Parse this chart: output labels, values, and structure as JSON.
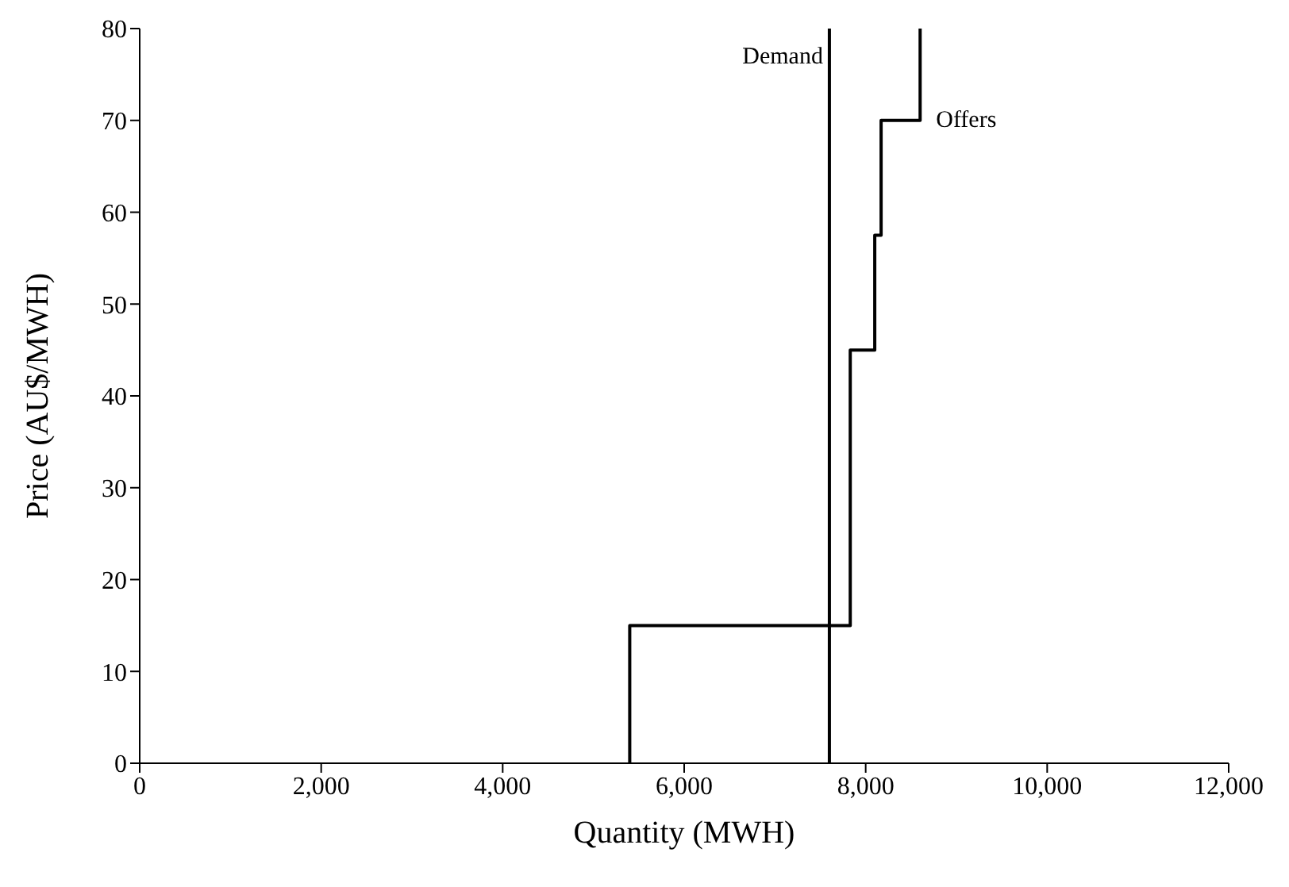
{
  "chart_data": {
    "type": "line",
    "xlabel": "Quantity (MWH)",
    "ylabel": "Price (AU$/MWH)",
    "xlim": [
      0,
      12000
    ],
    "xticks": [
      0,
      {
        "value": 2000,
        "label": "2,000"
      },
      {
        "value": 4000,
        "label": "4,000"
      },
      {
        "value": 6000,
        "label": "6,000"
      },
      {
        "value": 8000,
        "label": "8,000"
      },
      {
        "value": 10000,
        "label": "10,000"
      },
      {
        "value": 12000,
        "label": "12,000"
      }
    ],
    "ylim": [
      0,
      80
    ],
    "yticks": [
      0,
      10,
      20,
      30,
      40,
      50,
      60,
      70,
      80
    ],
    "grid": false,
    "legend": false,
    "marker": "none",
    "series": [
      {
        "name": "Demand",
        "type": "line",
        "color": "#000000",
        "x": [
          7600,
          7600
        ],
        "values": [
          0,
          80
        ]
      },
      {
        "name": "Offers",
        "type": "step",
        "color": "#000000",
        "x": [
          5400,
          5400,
          7830,
          8100,
          8170,
          8600
        ],
        "values": [
          0,
          15,
          45,
          57.5,
          70,
          80
        ]
      }
    ]
  }
}
